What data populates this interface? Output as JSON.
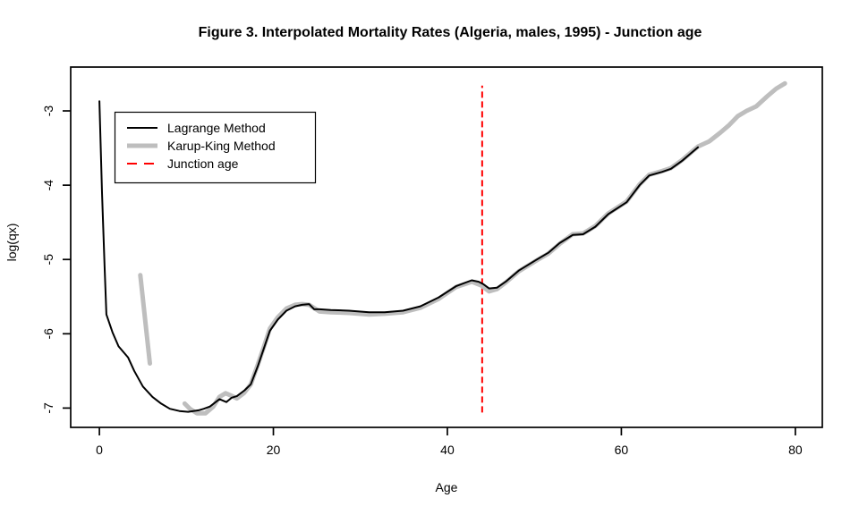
{
  "chart_data": {
    "type": "line",
    "title": "Figure 3. Interpolated Mortality Rates (Algeria, males, 1995) - Junction age",
    "xlabel": "Age",
    "ylabel": "log(qx)",
    "x_ticks": [
      0,
      20,
      40,
      60,
      80
    ],
    "y_ticks": [
      -3,
      -4,
      -5,
      -6,
      -7
    ],
    "x_domain": [
      -3.3,
      83.1
    ],
    "y_domain": [
      -7.26,
      -2.41
    ],
    "grid": false,
    "background": "#ffffff",
    "legend_position": "top-left",
    "legend": {
      "items": [
        {
          "label": "Lagrange Method",
          "color": "#000000",
          "style": "solid-thin"
        },
        {
          "label": "Karup-King Method",
          "color": "#bebebe",
          "style": "solid-thick"
        },
        {
          "label": "Junction age",
          "color": "#ff0000",
          "style": "dashed"
        }
      ]
    },
    "junction": {
      "age": 44,
      "color": "#ff0000",
      "style": "dashed",
      "v_extent": [
        -7.06,
        -2.66
      ]
    },
    "series": [
      {
        "name": "Lagrange Method",
        "color": "#000000",
        "width": 2,
        "segments": [
          [
            [
              0,
              -2.87
            ],
            [
              0.3,
              -4.1
            ],
            [
              0.6,
              -5.1
            ],
            [
              0.8,
              -5.74
            ],
            [
              1.5,
              -5.98
            ],
            [
              2.2,
              -6.17
            ],
            [
              3.3,
              -6.32
            ],
            [
              4,
              -6.5
            ],
            [
              5,
              -6.71
            ],
            [
              6.1,
              -6.85
            ],
            [
              7.1,
              -6.94
            ],
            [
              8.1,
              -7.01
            ],
            [
              9.2,
              -7.04
            ],
            [
              10.2,
              -7.05
            ],
            [
              11.4,
              -7.03
            ],
            [
              12,
              -7.01
            ],
            [
              12.7,
              -6.98
            ],
            [
              13.8,
              -6.88
            ],
            [
              14.6,
              -6.92
            ],
            [
              15.2,
              -6.86
            ],
            [
              15.8,
              -6.84
            ],
            [
              16.7,
              -6.76
            ],
            [
              17.4,
              -6.68
            ],
            [
              18.2,
              -6.44
            ],
            [
              18.9,
              -6.2
            ],
            [
              19.6,
              -5.96
            ],
            [
              20.5,
              -5.81
            ],
            [
              21.5,
              -5.69
            ],
            [
              22.5,
              -5.63
            ],
            [
              23.3,
              -5.61
            ],
            [
              24.1,
              -5.6
            ],
            [
              24.7,
              -5.67
            ],
            [
              25.3,
              -5.67
            ],
            [
              26.6,
              -5.68
            ],
            [
              28.7,
              -5.69
            ],
            [
              31,
              -5.71
            ],
            [
              32.8,
              -5.71
            ],
            [
              34.9,
              -5.69
            ],
            [
              36.9,
              -5.63
            ],
            [
              39,
              -5.51
            ],
            [
              41,
              -5.36
            ],
            [
              42.8,
              -5.28
            ],
            [
              43.6,
              -5.3
            ],
            [
              44.1,
              -5.33
            ],
            [
              44.8,
              -5.39
            ],
            [
              45.7,
              -5.38
            ],
            [
              46.7,
              -5.3
            ],
            [
              48.2,
              -5.15
            ],
            [
              50.3,
              -5
            ],
            [
              51.6,
              -4.91
            ],
            [
              52.9,
              -4.78
            ],
            [
              54.4,
              -4.67
            ],
            [
              55.6,
              -4.66
            ],
            [
              57,
              -4.56
            ],
            [
              58.5,
              -4.39
            ],
            [
              60.6,
              -4.23
            ],
            [
              62.1,
              -4
            ],
            [
              63.2,
              -3.87
            ],
            [
              64.7,
              -3.82
            ],
            [
              65.7,
              -3.78
            ],
            [
              67,
              -3.67
            ],
            [
              68,
              -3.57
            ],
            [
              68.8,
              -3.49
            ]
          ]
        ]
      },
      {
        "name": "Karup-King Method",
        "color": "#bebebe",
        "width": 5,
        "segments": [
          [
            [
              4.7,
              -5.21
            ],
            [
              5.8,
              -6.4
            ]
          ],
          [
            [
              9.8,
              -6.94
            ],
            [
              10.4,
              -7.01
            ],
            [
              11.2,
              -7.07
            ],
            [
              12.2,
              -7.07
            ],
            [
              13.1,
              -6.98
            ],
            [
              13.8,
              -6.85
            ],
            [
              14.5,
              -6.8
            ],
            [
              15.1,
              -6.83
            ],
            [
              15.8,
              -6.87
            ],
            [
              16.6,
              -6.8
            ],
            [
              17.4,
              -6.68
            ],
            [
              18.2,
              -6.42
            ],
            [
              18.9,
              -6.18
            ],
            [
              19.6,
              -5.93
            ],
            [
              20.5,
              -5.78
            ],
            [
              21.5,
              -5.66
            ],
            [
              22.5,
              -5.61
            ],
            [
              23.3,
              -5.6
            ],
            [
              24.1,
              -5.61
            ],
            [
              25.3,
              -5.7
            ],
            [
              26.6,
              -5.71
            ],
            [
              28.7,
              -5.72
            ],
            [
              31,
              -5.74
            ],
            [
              32.8,
              -5.73
            ],
            [
              34.9,
              -5.71
            ],
            [
              36.9,
              -5.65
            ],
            [
              39,
              -5.53
            ],
            [
              41,
              -5.37
            ],
            [
              42.8,
              -5.3
            ],
            [
              43.9,
              -5.35
            ],
            [
              44.8,
              -5.43
            ],
            [
              45.7,
              -5.4
            ],
            [
              46.7,
              -5.31
            ],
            [
              48.2,
              -5.16
            ],
            [
              50.3,
              -5.01
            ],
            [
              51.6,
              -4.92
            ],
            [
              52.9,
              -4.79
            ],
            [
              54.4,
              -4.66
            ],
            [
              55.6,
              -4.65
            ],
            [
              57,
              -4.55
            ],
            [
              58.5,
              -4.38
            ],
            [
              60.6,
              -4.22
            ],
            [
              62.1,
              -3.99
            ],
            [
              63.2,
              -3.86
            ],
            [
              64.7,
              -3.81
            ],
            [
              65.7,
              -3.77
            ],
            [
              67,
              -3.66
            ],
            [
              68.8,
              -3.48
            ],
            [
              70.1,
              -3.41
            ],
            [
              71.4,
              -3.29
            ],
            [
              72.4,
              -3.19
            ],
            [
              73.4,
              -3.07
            ],
            [
              74.4,
              -3
            ],
            [
              75.5,
              -2.94
            ],
            [
              76.8,
              -2.8
            ],
            [
              77.8,
              -2.7
            ],
            [
              78.8,
              -2.63
            ]
          ]
        ]
      }
    ]
  }
}
